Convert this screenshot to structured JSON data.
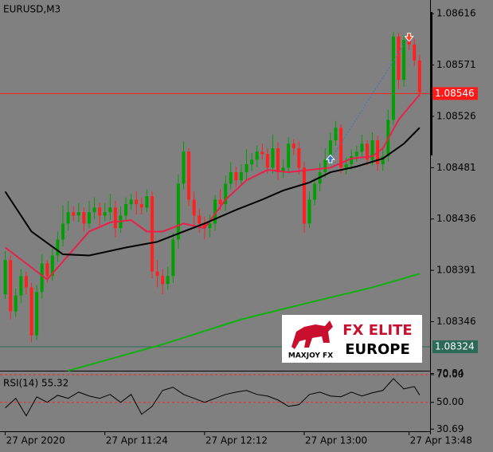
{
  "chart_data": [
    {
      "type": "candlestick",
      "title": "EURUSD,M3",
      "open": [
        1.0837,
        1.084,
        1.08355,
        1.08369,
        1.08386,
        1.08376,
        1.08334,
        1.08372,
        1.08397,
        1.08386,
        1.08404,
        1.08418,
        1.08432,
        1.08442,
        1.08439,
        1.08442,
        1.08432,
        1.08442,
        1.08446,
        1.08439,
        1.08442,
        1.08446,
        1.08428,
        1.08439,
        1.08449,
        1.08453,
        1.08449,
        1.08446,
        1.08456,
        1.0839,
        1.08386,
        1.08379,
        1.08386,
        1.08418,
        1.08467,
        1.08495,
        1.08453,
        1.08439,
        1.08432,
        1.08428,
        1.08432,
        1.08453,
        1.08449,
        1.08467,
        1.08477,
        1.0847,
        1.08477,
        1.08484,
        1.08488,
        1.08495,
        1.08493,
        1.08481,
        1.08498,
        1.08477,
        1.08481,
        1.08502,
        1.08498,
        1.08481,
        1.08432,
        1.08453,
        1.08467,
        1.08477,
        1.08488,
        1.08505,
        1.08516,
        1.08481,
        1.08484,
        1.08491,
        1.08495,
        1.08502,
        1.08488,
        1.08505,
        1.08484,
        1.08491,
        1.08523,
        1.08596,
        1.08558,
        1.08593,
        1.08589,
        1.08575
      ],
      "high": [
        1.08408,
        1.08404,
        1.08375,
        1.08392,
        1.0839,
        1.0838,
        1.08378,
        1.08405,
        1.084,
        1.0841,
        1.08425,
        1.08448,
        1.08452,
        1.08447,
        1.0845,
        1.08446,
        1.08452,
        1.08455,
        1.0845,
        1.0845,
        1.08458,
        1.08452,
        1.08447,
        1.08455,
        1.08458,
        1.0846,
        1.08455,
        1.08462,
        1.0846,
        1.084,
        1.08392,
        1.08394,
        1.08424,
        1.08475,
        1.08504,
        1.08498,
        1.0846,
        1.08445,
        1.08438,
        1.0844,
        1.08457,
        1.08462,
        1.08474,
        1.08486,
        1.08482,
        1.08484,
        1.08497,
        1.08494,
        1.085,
        1.08502,
        1.08498,
        1.0851,
        1.08503,
        1.08488,
        1.08508,
        1.08506,
        1.08504,
        1.08486,
        1.0846,
        1.08472,
        1.08485,
        1.08498,
        1.08512,
        1.08522,
        1.08519,
        1.0849,
        1.08497,
        1.085,
        1.0851,
        1.08505,
        1.08512,
        1.08509,
        1.08498,
        1.08532,
        1.086,
        1.08599,
        1.08597,
        1.08598,
        1.08594,
        1.0858
      ],
      "low": [
        1.08366,
        1.08348,
        1.0835,
        1.08362,
        1.0837,
        1.08328,
        1.0833,
        1.08366,
        1.0838,
        1.08382,
        1.08398,
        1.08412,
        1.08426,
        1.08434,
        1.08433,
        1.08425,
        1.08428,
        1.08436,
        1.0843,
        1.08434,
        1.08435,
        1.0842,
        1.08424,
        1.08434,
        1.08444,
        1.0844,
        1.0844,
        1.08442,
        1.08384,
        1.08376,
        1.0837,
        1.08374,
        1.0838,
        1.0841,
        1.08462,
        1.08447,
        1.0843,
        1.08424,
        1.08418,
        1.0842,
        1.08426,
        1.08444,
        1.08443,
        1.08462,
        1.08464,
        1.08466,
        1.0847,
        1.08478,
        1.08482,
        1.08488,
        1.08476,
        1.08476,
        1.0847,
        1.08472,
        1.08476,
        1.08492,
        1.08475,
        1.08424,
        1.08428,
        1.08448,
        1.0846,
        1.08472,
        1.08484,
        1.085,
        1.08476,
        1.08475,
        1.08479,
        1.08486,
        1.0849,
        1.08483,
        1.08483,
        1.08478,
        1.08478,
        1.08486,
        1.08518,
        1.0855,
        1.08552,
        1.08584,
        1.0857,
        1.08543
      ],
      "close": [
        1.084,
        1.08355,
        1.08369,
        1.08386,
        1.08376,
        1.08334,
        1.08372,
        1.08397,
        1.08386,
        1.08404,
        1.08418,
        1.08432,
        1.08442,
        1.08439,
        1.08442,
        1.08432,
        1.08442,
        1.08446,
        1.08439,
        1.08442,
        1.08446,
        1.08428,
        1.08439,
        1.08449,
        1.08453,
        1.08449,
        1.08446,
        1.08456,
        1.0839,
        1.08386,
        1.08379,
        1.08386,
        1.08418,
        1.08467,
        1.08495,
        1.08453,
        1.08439,
        1.08432,
        1.08428,
        1.08432,
        1.08453,
        1.08449,
        1.08467,
        1.08477,
        1.0847,
        1.08477,
        1.08484,
        1.08488,
        1.08495,
        1.08493,
        1.08481,
        1.08498,
        1.08477,
        1.08481,
        1.08502,
        1.08498,
        1.08481,
        1.08432,
        1.08453,
        1.08467,
        1.08477,
        1.08488,
        1.08505,
        1.08516,
        1.08481,
        1.08484,
        1.08491,
        1.08495,
        1.08502,
        1.08488,
        1.08505,
        1.08484,
        1.08491,
        1.08523,
        1.08596,
        1.08558,
        1.08593,
        1.08589,
        1.08575,
        1.08547
      ],
      "up_color": "#00a000",
      "down_color": "#ff2020",
      "overlays": [
        {
          "color": "#e8204a",
          "x": [
            0,
            4,
            8,
            12,
            16,
            20,
            24,
            27,
            30,
            34,
            38,
            42,
            46,
            50,
            54,
            58,
            62,
            66,
            70,
            72,
            75,
            79
          ],
          "values": [
            1.08411,
            1.08397,
            1.08383,
            1.08404,
            1.08425,
            1.08433,
            1.08435,
            1.08425,
            1.08425,
            1.08432,
            1.08428,
            1.08453,
            1.0847,
            1.08479,
            1.08477,
            1.08479,
            1.08481,
            1.08489,
            1.08491,
            1.08498,
            1.08523,
            1.08545
          ]
        },
        {
          "color": "#000000",
          "x": [
            0,
            5,
            11,
            16,
            23,
            29,
            34,
            38,
            44,
            49,
            53,
            58,
            62,
            67,
            72,
            76,
            79
          ],
          "values": [
            1.0846,
            1.08425,
            1.08405,
            1.08404,
            1.08411,
            1.08416,
            1.08425,
            1.08432,
            1.08444,
            1.08453,
            1.08461,
            1.08468,
            1.08477,
            1.08482,
            1.08489,
            1.08502,
            1.08516
          ]
        },
        {
          "color": "#10b010",
          "x": [
            12,
            30,
            45,
            60,
            70,
            79
          ],
          "values": [
            1.08303,
            1.08326,
            1.08348,
            1.08365,
            1.08376,
            1.08388
          ]
        }
      ],
      "levels": [
        {
          "value": 1.08546,
          "color": "#ff1a1a"
        },
        {
          "value": 1.08324,
          "color": "#2c6a58"
        }
      ],
      "trade": {
        "entry_index": 62,
        "entry_price": 1.08488,
        "exit_index": 77,
        "exit_price": 1.08596
      },
      "xlim": [
        -1,
        81
      ],
      "xticks": [
        {
          "value": 0,
          "label": "27 Apr 2020"
        },
        {
          "value": 19,
          "label": "27 Apr 11:24"
        },
        {
          "value": 38,
          "label": "27 Apr 12:12"
        },
        {
          "value": 57,
          "label": "27 Apr 13:00"
        },
        {
          "value": 77,
          "label": "27 Apr 13:48"
        }
      ],
      "ylim": [
        1.08303,
        1.08628
      ],
      "yticks": [
        1.08616,
        1.08571,
        1.08526,
        1.08481,
        1.08436,
        1.08391,
        1.08346
      ]
    },
    {
      "type": "line",
      "title": "RSI(14) 55.32",
      "color": "#000000",
      "x": [
        0,
        2,
        4,
        6,
        8,
        10,
        12,
        14,
        16,
        18,
        20,
        22,
        24,
        26,
        28,
        30,
        32,
        34,
        36,
        38,
        40,
        42,
        44,
        46,
        48,
        50,
        52,
        54,
        56,
        58,
        60,
        62,
        64,
        66,
        68,
        70,
        72,
        74,
        76,
        78,
        79
      ],
      "values": [
        46,
        52.9,
        40.3,
        54,
        50,
        55.1,
        52.9,
        57.4,
        54.6,
        52.9,
        55.7,
        50,
        55.7,
        41.4,
        47.1,
        58.6,
        60.9,
        55.7,
        52.9,
        50,
        52.9,
        55.7,
        57.4,
        58.6,
        55.7,
        54.6,
        51.7,
        47.1,
        48.3,
        55.7,
        57.4,
        54.6,
        54,
        57.4,
        54.6,
        56.9,
        58.6,
        67.1,
        59.7,
        61.4,
        55.3
      ],
      "levels": [
        70,
        50
      ],
      "level_color": "#ff2020",
      "xlim": [
        -1,
        81
      ],
      "ylim": [
        29.7,
        71.7
      ],
      "yticks": [
        {
          "value": 70.84,
          "label": "70.84"
        },
        {
          "value": 70,
          "label": "70.00"
        },
        {
          "value": 50,
          "label": "50.00"
        },
        {
          "value": 30.69,
          "label": "30.69"
        }
      ]
    }
  ],
  "logo": {
    "brand": "FX ELITE",
    "region": "EUROPE",
    "name": "MAXJOY FX"
  }
}
